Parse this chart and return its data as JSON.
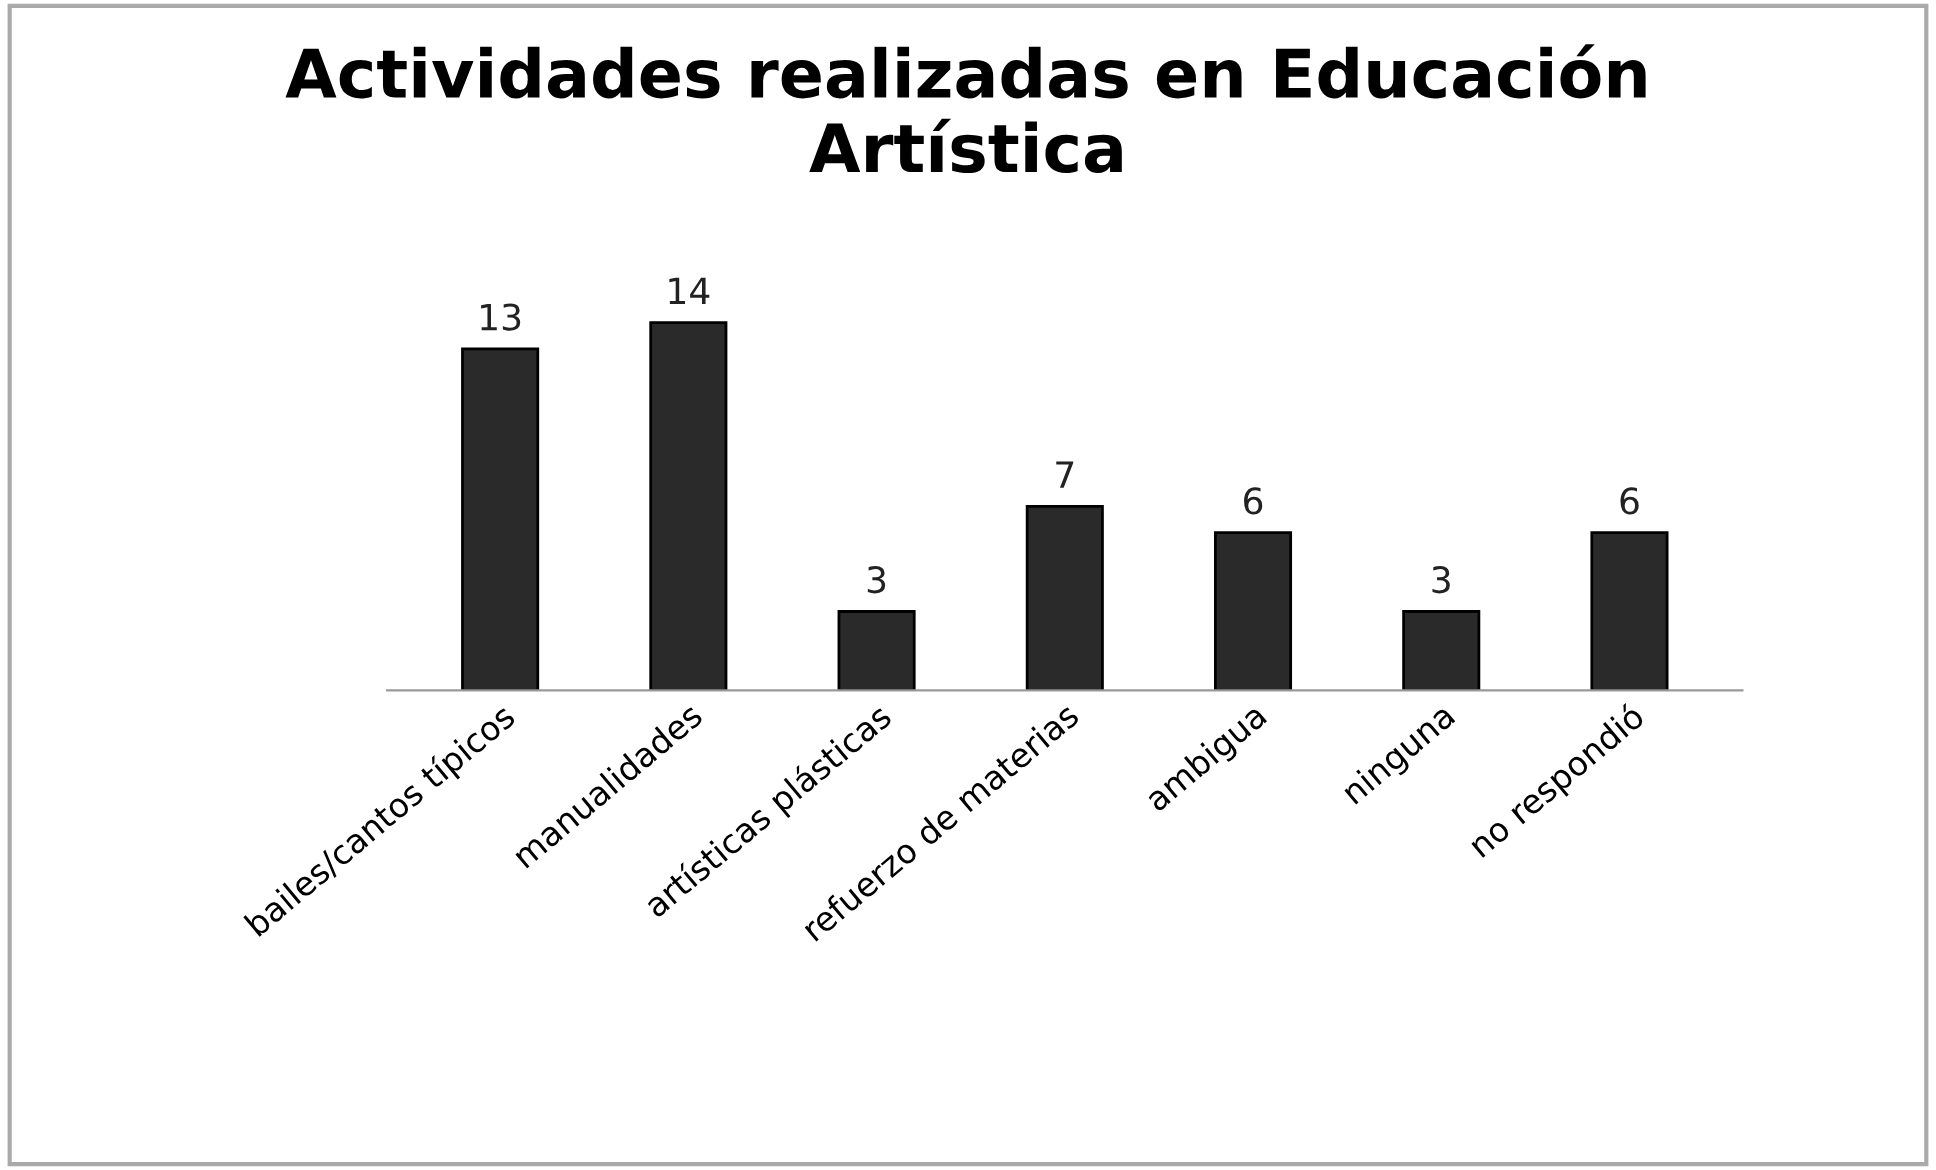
{
  "chart_data": {
    "type": "bar",
    "title": "Actividades realizadas en Educación\nArtística",
    "categories": [
      "bailes/cantos típicos",
      "manualidades",
      "artísticas plásticas",
      "refuerzo de materias",
      "ambigua",
      "ninguna",
      "no respondió"
    ],
    "values": [
      13,
      14,
      3,
      7,
      6,
      3,
      6
    ],
    "color": "#2a2a2a",
    "data_labels": true,
    "grid": false,
    "legend": false
  }
}
